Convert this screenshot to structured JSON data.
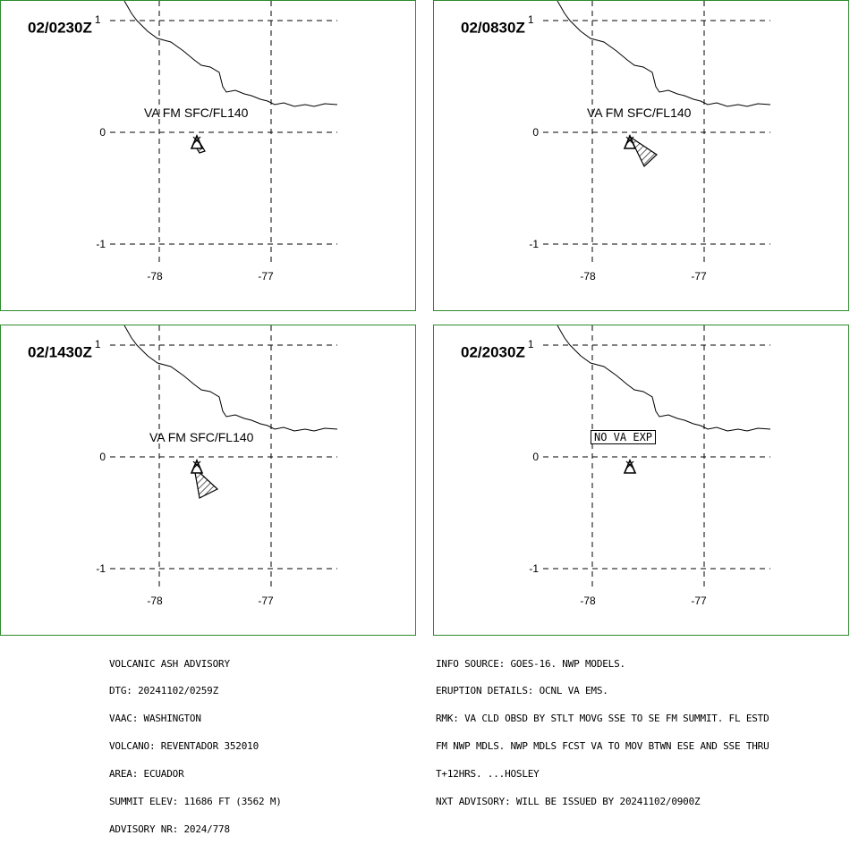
{
  "colors": {
    "border": "#2e8b2e",
    "lines": "#000000"
  },
  "panels": [
    {
      "time": "02/0230Z",
      "time_sup": "1",
      "label": "VA FM SFC/FL140",
      "label_type": "text",
      "lat_labels": [
        "0",
        "-1"
      ],
      "lon_labels": [
        "-78",
        "-77"
      ],
      "plume": "small"
    },
    {
      "time": "02/0830Z",
      "time_sup": "1",
      "label": "VA FM SFC/FL140",
      "label_type": "text",
      "lat_labels": [
        "0",
        "-1"
      ],
      "lon_labels": [
        "-78",
        "-77"
      ],
      "plume": "se"
    },
    {
      "time": "02/1430Z",
      "time_sup": "1",
      "label": "VA FM SFC/FL140",
      "label_type": "text",
      "lat_labels": [
        "0",
        "-1"
      ],
      "lon_labels": [
        "-78",
        "-77"
      ],
      "plume": "sse"
    },
    {
      "time": "02/2030Z",
      "time_sup": "1",
      "label": "NO VA EXP",
      "label_type": "box",
      "lat_labels": [
        "0",
        "-1"
      ],
      "lon_labels": [
        "-78",
        "-77"
      ],
      "plume": "none"
    }
  ],
  "advisory_left": [
    "VOLCANIC ASH ADVISORY",
    "DTG: 20241102/0259Z",
    "VAAC: WASHINGTON",
    "VOLCANO: REVENTADOR 352010",
    "AREA: ECUADOR",
    "SUMMIT ELEV: 11686 FT (3562 M)",
    "ADVISORY NR: 2024/778"
  ],
  "advisory_right": [
    "INFO SOURCE: GOES-16. NWP MODELS.",
    "ERUPTION DETAILS: OCNL VA EMS.",
    "RMK: VA CLD OBSD BY STLT MOVG SSE TO SE FM SUMMIT. FL ESTD",
    "FM NWP MDLS. NWP MDLS FCST VA TO MOV BTWN ESE AND SSE THRU",
    "T+12HRS. ...HOSLEY",
    "NXT ADVISORY: WILL BE ISSUED BY 20241102/0900Z"
  ]
}
